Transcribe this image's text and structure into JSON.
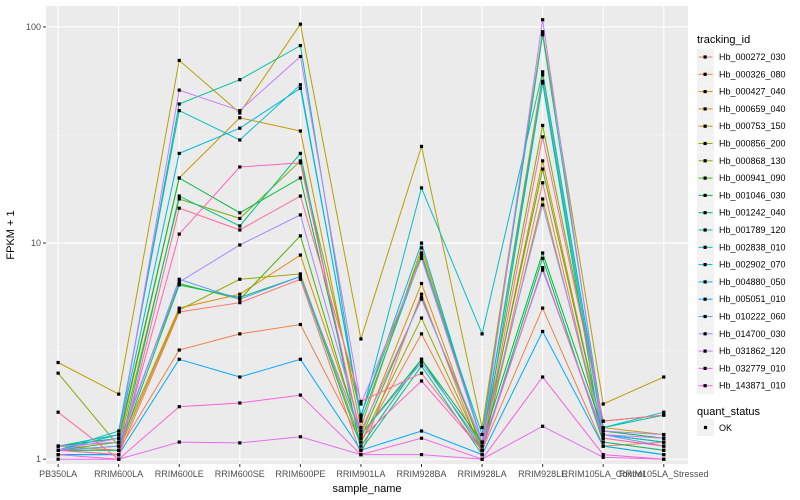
{
  "chart_data": {
    "type": "line",
    "xlabel": "sample_name",
    "ylabel": "FPKM + 1",
    "y_scale": "log10",
    "ylim": [
      0.95,
      125
    ],
    "y_ticks": [
      {
        "value": 1,
        "label": "1"
      },
      {
        "value": 10,
        "label": "10"
      },
      {
        "value": 100,
        "label": "100"
      }
    ],
    "categories": [
      "PB350LA",
      "RRIM600LA",
      "RRIM600LE",
      "RRIM600SE",
      "RRIM600PE",
      "RRIM901LA",
      "RRIM928BA",
      "RRIM928LA",
      "RRIM928LE",
      "RRIM105LA_Control",
      "RRIM105LA_Stressed"
    ],
    "legend": {
      "title": "tracking_id",
      "placement": "right"
    },
    "point_legend": {
      "title": "quant_status",
      "label": "OK"
    },
    "grid": true,
    "panel_background": "#ebebeb",
    "series": [
      {
        "name": "Hb_000272_030",
        "color": "#F8766D",
        "values": [
          1.1,
          1.05,
          4.8,
          5.3,
          6.8,
          1.05,
          5.8,
          1.05,
          19.0,
          1.2,
          1.1
        ]
      },
      {
        "name": "Hb_000326_080",
        "color": "#EE8044",
        "values": [
          1.15,
          1.1,
          3.2,
          3.8,
          4.2,
          1.2,
          3.8,
          1.1,
          5.0,
          1.15,
          1.2
        ]
      },
      {
        "name": "Hb_000427_040",
        "color": "#E08B00",
        "values": [
          1.1,
          1.15,
          5.0,
          5.8,
          8.8,
          1.3,
          6.5,
          1.1,
          24.0,
          1.3,
          1.2
        ]
      },
      {
        "name": "Hb_000659_040",
        "color": "#CE9500",
        "values": [
          1.15,
          1.2,
          20.0,
          38.0,
          33.0,
          1.4,
          9.5,
          1.2,
          60.0,
          1.4,
          1.3
        ]
      },
      {
        "name": "Hb_000753_150",
        "color": "#B79F00",
        "values": [
          2.8,
          2.0,
          70.0,
          40.0,
          103.0,
          3.6,
          28.0,
          1.4,
          95.0,
          1.8,
          2.4
        ]
      },
      {
        "name": "Hb_000856_200",
        "color": "#9CA700",
        "values": [
          1.1,
          1.1,
          4.9,
          6.8,
          7.2,
          1.2,
          4.5,
          1.1,
          16.0,
          1.25,
          1.15
        ]
      },
      {
        "name": "Hb_000868_130",
        "color": "#7CAE00",
        "values": [
          2.5,
          1.15,
          16.0,
          13.0,
          24.0,
          1.6,
          9.0,
          1.2,
          35.0,
          1.5,
          1.6
        ]
      },
      {
        "name": "Hb_000941_090",
        "color": "#49B500",
        "values": [
          1.1,
          1.2,
          6.5,
          5.5,
          10.8,
          1.25,
          5.6,
          1.15,
          22.0,
          1.3,
          1.2
        ]
      },
      {
        "name": "Hb_001046_030",
        "color": "#00BA38",
        "values": [
          1.15,
          1.25,
          20.0,
          13.8,
          20.0,
          1.3,
          2.9,
          1.2,
          9.0,
          1.35,
          1.25
        ]
      },
      {
        "name": "Hb_001242_040",
        "color": "#00BE6C",
        "values": [
          1.1,
          1.1,
          6.4,
          5.6,
          7.0,
          1.15,
          2.9,
          1.1,
          8.5,
          1.2,
          1.1
        ]
      },
      {
        "name": "Hb_001789_120",
        "color": "#00C08B",
        "values": [
          1.05,
          1.05,
          16.5,
          12.0,
          26.0,
          1.1,
          2.7,
          1.05,
          55.0,
          1.15,
          1.05
        ]
      },
      {
        "name": "Hb_002838_010",
        "color": "#00C1A7",
        "values": [
          1.15,
          1.3,
          44.0,
          57.0,
          82.0,
          1.5,
          8.7,
          1.3,
          92.0,
          1.4,
          1.6
        ]
      },
      {
        "name": "Hb_002902_070",
        "color": "#00BFC4",
        "values": [
          1.1,
          1.35,
          41.0,
          30.0,
          54.0,
          1.55,
          18.0,
          3.8,
          62.0,
          1.4,
          1.65
        ]
      },
      {
        "name": "Hb_004880_050",
        "color": "#00B8E7",
        "values": [
          1.1,
          1.3,
          26.0,
          34.0,
          52.0,
          1.6,
          10.0,
          1.2,
          56.0,
          1.3,
          1.2
        ]
      },
      {
        "name": "Hb_005051_010",
        "color": "#00A9FF",
        "values": [
          1.05,
          1.05,
          2.9,
          2.4,
          2.9,
          1.1,
          1.35,
          1.05,
          3.9,
          1.15,
          1.05
        ]
      },
      {
        "name": "Hb_010222_060",
        "color": "#619CFF",
        "values": [
          1.1,
          1.15,
          6.8,
          5.5,
          7.0,
          1.3,
          2.8,
          1.15,
          7.5,
          1.3,
          1.15
        ]
      },
      {
        "name": "Hb_014700_030",
        "color": "#A58AFF",
        "values": [
          1.15,
          1.2,
          6.6,
          9.8,
          13.5,
          1.35,
          5.5,
          1.2,
          15.0,
          1.35,
          1.3
        ]
      },
      {
        "name": "Hb_031862_120",
        "color": "#C77CFF",
        "values": [
          1.1,
          1.25,
          51.0,
          41.0,
          73.0,
          1.8,
          8.5,
          1.2,
          108.0,
          1.3,
          1.25
        ]
      },
      {
        "name": "Hb_032779_010",
        "color": "#E76BF3",
        "values": [
          1.0,
          1.0,
          1.2,
          1.19,
          1.27,
          1.05,
          1.05,
          1.0,
          1.42,
          1.02,
          1.0
        ]
      },
      {
        "name": "Hb_143871_010",
        "color": "#FA62DB",
        "values": [
          1.05,
          1.0,
          1.75,
          1.82,
          1.98,
          1.05,
          1.25,
          1.0,
          2.4,
          1.05,
          1.0
        ]
      },
      {
        "name": "",
        "color": "#FF62BC",
        "values": [
          1.1,
          1.05,
          11.0,
          22.5,
          23.5,
          1.25,
          2.3,
          1.1,
          7.7,
          1.25,
          1.15
        ]
      },
      {
        "name": "",
        "color": "#FF6C91",
        "values": [
          1.65,
          1.0,
          14.5,
          11.5,
          16.5,
          1.85,
          2.5,
          1.1,
          31.0,
          1.5,
          1.6
        ]
      }
    ]
  }
}
